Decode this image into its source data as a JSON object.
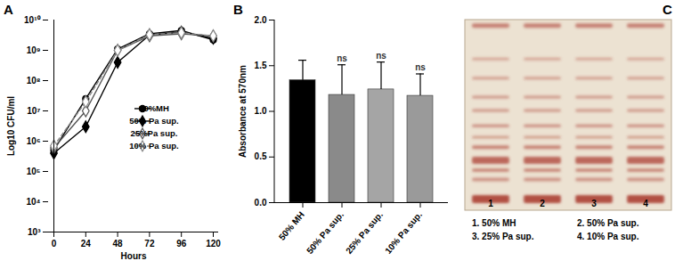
{
  "chart_data": [
    {
      "panel": "A",
      "type": "line",
      "x_label": "Hours",
      "y_label": "Log10 CFU/ml",
      "log": "y",
      "legend": "right",
      "x": [
        0,
        24,
        48,
        72,
        96,
        120
      ],
      "xlim": [
        0,
        120
      ],
      "xticks": [
        0,
        24,
        48,
        72,
        96,
        120
      ],
      "ylim": [
        1000,
        10000000000
      ],
      "yticks": [
        {
          "value": 1000,
          "label": "10³"
        },
        {
          "value": 10000,
          "label": "10⁴"
        },
        {
          "value": 100000,
          "label": "10⁵"
        },
        {
          "value": 1000000,
          "label": "10⁶"
        },
        {
          "value": 10000000,
          "label": "10⁷"
        },
        {
          "value": 100000000,
          "label": "10⁸"
        },
        {
          "value": 1000000000,
          "label": "10⁹"
        },
        {
          "value": 10000000000,
          "label": "10¹⁰"
        }
      ],
      "series": [
        {
          "name": "50%MH",
          "color": "#000000",
          "marker": "circle",
          "line_style": "solid",
          "values": [
            500000,
            25000000,
            1100000000,
            3500000000,
            4500000000,
            2200000000
          ]
        },
        {
          "name": "50% Pa sup.",
          "color": "#000000",
          "marker": "diamond",
          "line_style": "solid",
          "values": [
            400000,
            3000000,
            400000000,
            3200000000,
            4000000000,
            2500000000
          ]
        },
        {
          "name": "25%Pa sup.",
          "color": "#555555",
          "marker": "open diamond",
          "line_style": "solid",
          "values": [
            600000,
            10000000,
            1000000000,
            3000000000,
            3500000000,
            3000000000
          ]
        },
        {
          "name": "10% Pa sup.",
          "color": "#888888",
          "marker": "open diamond",
          "line_style": "dashed",
          "values": [
            700000,
            20000000,
            1000000000,
            3300000000,
            3800000000,
            3000000000
          ]
        }
      ]
    },
    {
      "panel": "B",
      "type": "bar",
      "y_label": "Absorbance at 570nm",
      "categories": [
        "50% MH",
        "50% Pa sup.",
        "25% Pa sup.",
        "10% Pa sup."
      ],
      "values": [
        1.34,
        1.18,
        1.24,
        1.17
      ],
      "errors": [
        0.22,
        0.33,
        0.3,
        0.24
      ],
      "annotations": [
        null,
        "ns",
        "ns",
        "ns"
      ],
      "colors": [
        "#000000",
        "#8a8a8a",
        "#a5a5a5",
        "#9a9a9a"
      ],
      "ylim": [
        0,
        2
      ],
      "yticks": [
        {
          "value": 0,
          "label": "0.0"
        },
        0.5,
        {
          "value": 1,
          "label": "1.0"
        },
        1.5,
        {
          "value": 2,
          "label": "2.0"
        }
      ]
    }
  ],
  "gel": {
    "panel": "C",
    "lanes": [
      "1",
      "2",
      "3",
      "4"
    ],
    "key": [
      "1. 50% MH",
      "2. 50% Pa sup.",
      "3. 25% Pa sup.",
      "4. 10% Pa sup."
    ]
  }
}
